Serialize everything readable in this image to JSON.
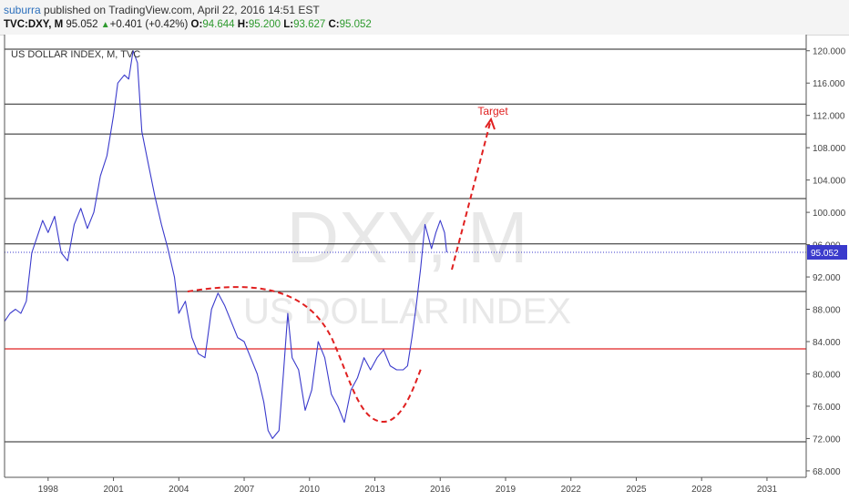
{
  "header": {
    "author": "suburra",
    "published_text": "published on TradingView.com, April 22, 2016 14:51 EST",
    "symbol": "TVC:DXY, M",
    "last": "95.052",
    "change": "+0.401 (+0.42%)",
    "open_label": "O:",
    "open": "94.644",
    "high_label": "H:",
    "high": "95.200",
    "low_label": "L:",
    "low": "93.627",
    "close_label": "C:",
    "close": "95.052",
    "up_icon": "triangle-up-icon"
  },
  "chart_data": {
    "type": "line",
    "title": "US DOLLAR INDEX, M, TVC",
    "watermark_main": "DXY, M",
    "watermark_sub": "US DOLLAR INDEX",
    "annotation_target": "Target",
    "last_price_label": "95.052",
    "xlim": [
      1996.0,
      2032.8
    ],
    "ylim": [
      67.2,
      122.0
    ],
    "x_ticks": [
      1998,
      2001,
      2004,
      2007,
      2010,
      2013,
      2016,
      2019,
      2022,
      2025,
      2028,
      2031
    ],
    "x_tick_labels": [
      "1998",
      "2001",
      "2004",
      "2007",
      "2010",
      "2013",
      "2016",
      "2019",
      "2022",
      "2025",
      "2028",
      "2031"
    ],
    "y_ticks": [
      68,
      72,
      76,
      80,
      84,
      88,
      92,
      96,
      100,
      104,
      108,
      112,
      116,
      120
    ],
    "y_tick_labels": [
      "68.000",
      "72.000",
      "76.000",
      "80.000",
      "84.000",
      "88.000",
      "92.000",
      "96.000",
      "100.000",
      "104.000",
      "108.000",
      "112.000",
      "116.000",
      "120.000"
    ],
    "horizontal_levels": [
      120.2,
      113.4,
      109.7,
      101.7,
      96.1,
      90.2,
      71.6
    ],
    "support_level_red": 83.1,
    "last_price": 95.052,
    "series": [
      {
        "color": "#3a3acc",
        "x": [
          1996.0,
          1996.25,
          1996.5,
          1996.75,
          1997.0,
          1997.25,
          1997.5,
          1997.75,
          1998.0,
          1998.3,
          1998.6,
          1998.9,
          1999.2,
          1999.5,
          1999.8,
          2000.1,
          2000.4,
          2000.7,
          2001.0,
          2001.2,
          2001.5,
          2001.7,
          2001.9,
          2002.1,
          2002.3,
          2002.6,
          2002.9,
          2003.2,
          2003.5,
          2003.8,
          2004.0,
          2004.3,
          2004.6,
          2004.9,
          2005.2,
          2005.5,
          2005.8,
          2006.1,
          2006.4,
          2006.7,
          2007.0,
          2007.3,
          2007.6,
          2007.9,
          2008.1,
          2008.3,
          2008.6,
          2008.8,
          2009.0,
          2009.2,
          2009.5,
          2009.8,
          2010.1,
          2010.4,
          2010.7,
          2011.0,
          2011.3,
          2011.6,
          2011.9,
          2012.2,
          2012.5,
          2012.8,
          2013.1,
          2013.4,
          2013.7,
          2014.0,
          2014.3,
          2014.5,
          2014.7,
          2014.9,
          2015.1,
          2015.3,
          2015.6,
          2015.8,
          2016.0,
          2016.2,
          2016.3
        ],
        "values": [
          86.5,
          87.5,
          88.0,
          87.5,
          89.0,
          95.0,
          97.0,
          99.0,
          97.5,
          99.5,
          95.0,
          94.0,
          98.5,
          100.5,
          98.0,
          100.0,
          104.5,
          107.0,
          112.0,
          116.0,
          117.0,
          116.5,
          120.0,
          118.5,
          110.0,
          106.0,
          102.0,
          98.5,
          95.5,
          92.0,
          87.5,
          89.0,
          84.5,
          82.5,
          82.0,
          88.0,
          90.0,
          88.5,
          86.5,
          84.5,
          84.0,
          82.0,
          80.0,
          76.5,
          73.0,
          72.0,
          73.0,
          80.0,
          87.5,
          82.0,
          80.5,
          75.5,
          78.0,
          84.0,
          82.0,
          77.5,
          76.0,
          74.0,
          78.0,
          79.5,
          82.0,
          80.5,
          82.0,
          83.0,
          81.0,
          80.5,
          80.5,
          81.0,
          84.5,
          88.5,
          93.0,
          98.5,
          95.5,
          97.5,
          99.0,
          97.5,
          95.052
        ]
      }
    ]
  }
}
